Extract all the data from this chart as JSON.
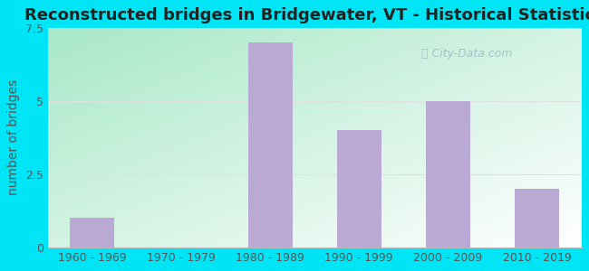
{
  "categories": [
    "1960 - 1969",
    "1970 - 1979",
    "1980 - 1989",
    "1990 - 1999",
    "2000 - 2009",
    "2010 - 2019"
  ],
  "values": [
    1,
    0,
    7,
    4,
    5,
    2
  ],
  "bar_color": "#b9a9d4",
  "title": "Reconstructed bridges in Bridgewater, VT - Historical Statistics",
  "ylabel": "number of bridges",
  "ylim": [
    0,
    7.5
  ],
  "yticks": [
    0,
    2.5,
    5,
    7.5
  ],
  "background_outer": "#00e5f5",
  "background_corner_bl": "#a8e8c8",
  "background_corner_tr": "#ffffff",
  "title_fontsize": 13,
  "ylabel_fontsize": 10,
  "tick_fontsize": 9,
  "watermark_text": " City-Data.com",
  "watermark_color": "#a0bfc8",
  "grid_color": "#e0e0e0",
  "title_color": "#222222",
  "tick_color": "#555555"
}
